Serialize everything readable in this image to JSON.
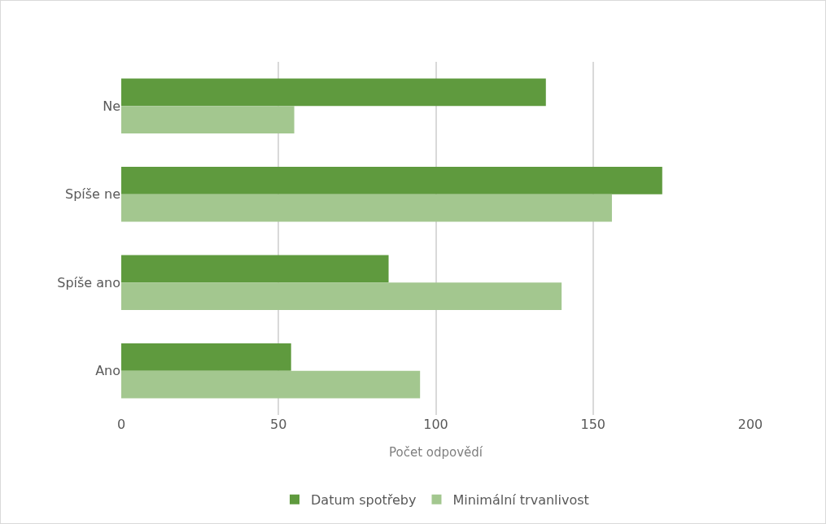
{
  "chart_data": {
    "type": "bar",
    "orientation": "horizontal",
    "xlabel": "Počet odpovědí",
    "categories": [
      "Ne",
      "Spíše ne",
      "Spíše ano",
      "Ano"
    ],
    "series": [
      {
        "name": "Datum spotřeby",
        "color": "#5f9a3e",
        "values": [
          135,
          172,
          85,
          54
        ]
      },
      {
        "name": "Minimální trvanlivost",
        "color": "#a3c78f",
        "values": [
          55,
          156,
          140,
          95
        ]
      }
    ],
    "xlim": [
      0,
      200
    ],
    "xticks": [
      0,
      50,
      100,
      150,
      200
    ],
    "grid": "x",
    "legend": "bottom"
  }
}
